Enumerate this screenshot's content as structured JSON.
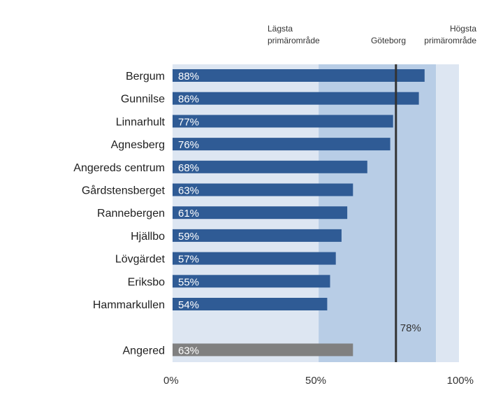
{
  "chart_data": {
    "type": "bar",
    "orientation": "horizontal",
    "title": "",
    "categories": [
      "Bergum",
      "Gunnilse",
      "Linnarhult",
      "Agnesberg",
      "Angereds centrum",
      "Gårdstensberget",
      "Rannebergen",
      "Hjällbo",
      "Lövgärdet",
      "Eriksbo",
      "Hammarkullen",
      "Angered"
    ],
    "values": [
      88,
      86,
      77,
      76,
      68,
      63,
      61,
      59,
      57,
      55,
      54,
      63
    ],
    "value_labels": [
      "88%",
      "86%",
      "77%",
      "76%",
      "68%",
      "63%",
      "61%",
      "59%",
      "57%",
      "55%",
      "54%",
      "63%"
    ],
    "summary_category": "Angered",
    "xlim": [
      0,
      100
    ],
    "x_ticks": [
      "0%",
      "50%",
      "100%"
    ],
    "x_tick_values": [
      0,
      50,
      100
    ],
    "bands": [
      {
        "from": 0,
        "to": 51,
        "color": "#dde6f2"
      },
      {
        "from": 51,
        "to": 92,
        "color": "#b8cde6"
      },
      {
        "from": 92,
        "to": 100,
        "color": "#dde6f2"
      }
    ],
    "reference_line": {
      "value": 78,
      "label": "78%",
      "color": "#333333"
    },
    "headers": [
      {
        "lines": [
          "Lägsta",
          "primärområde"
        ],
        "value": 51
      },
      {
        "lines": [
          "Göteborg"
        ],
        "value": 78
      },
      {
        "lines": [
          "Högsta",
          "primärområde"
        ],
        "value": 92
      }
    ],
    "colors": {
      "bar": "#2f5b95",
      "summary_bar": "#808080",
      "value_text": "#ffffff"
    }
  }
}
